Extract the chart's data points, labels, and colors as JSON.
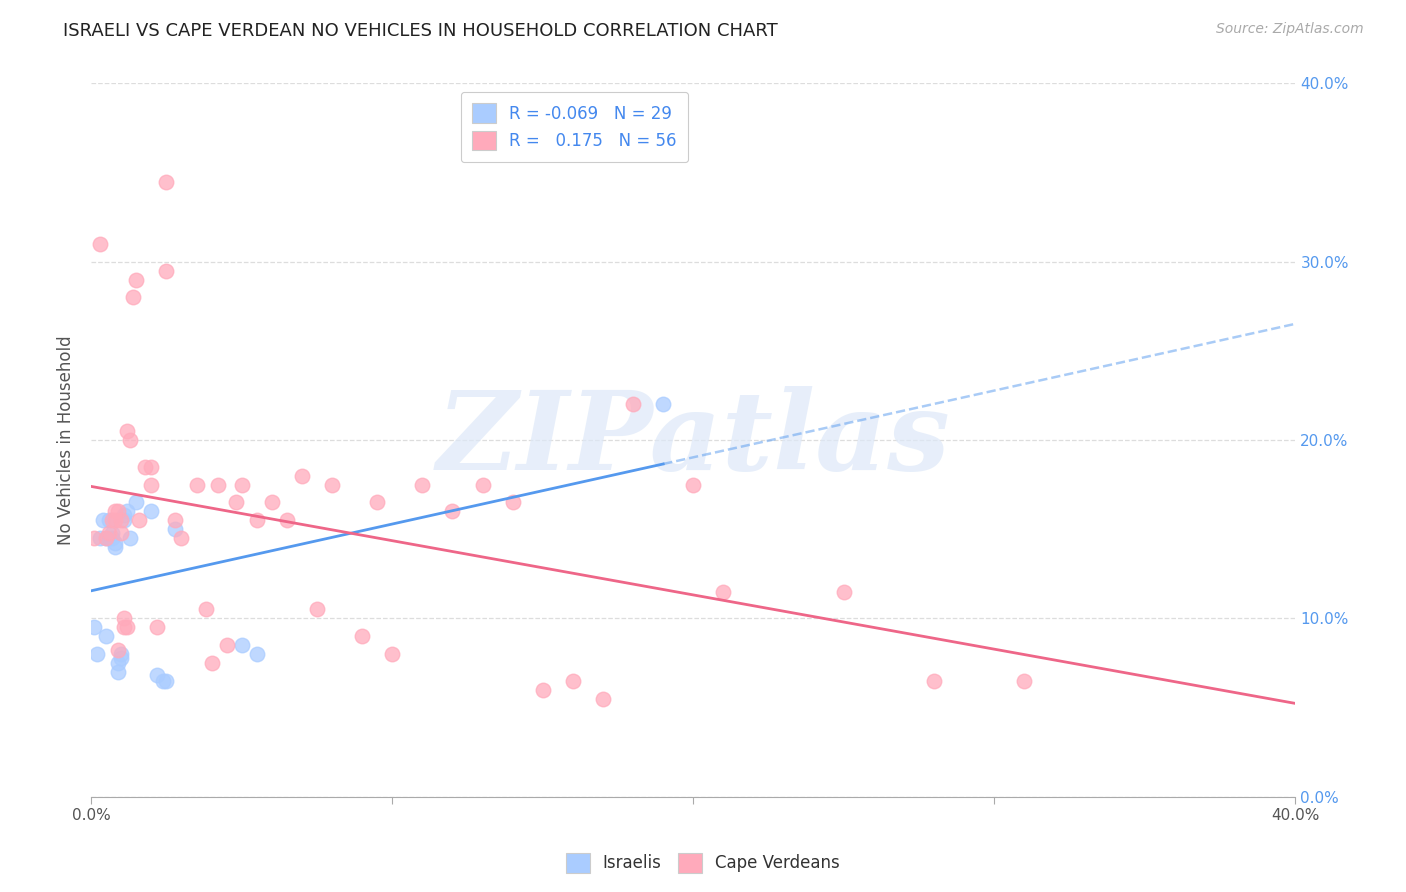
{
  "title": "ISRAELI VS CAPE VERDEAN NO VEHICLES IN HOUSEHOLD CORRELATION CHART",
  "source": "Source: ZipAtlas.com",
  "ylabel": "No Vehicles in Household",
  "watermark": "ZIPatlas",
  "legend_israeli_r": "-0.069",
  "legend_israeli_n": "29",
  "legend_capeverdean_r": "0.175",
  "legend_capeverdean_n": "56",
  "israeli_color": "#aaccff",
  "capeverdean_color": "#ffaabb",
  "israeli_line_color": "#5599ee",
  "capeverdean_line_color": "#ee6688",
  "xlim": [
    0.0,
    0.4
  ],
  "ylim": [
    0.0,
    0.4
  ],
  "israeli_scatter_x": [
    0.001,
    0.002,
    0.003,
    0.004,
    0.005,
    0.005,
    0.006,
    0.006,
    0.007,
    0.007,
    0.008,
    0.008,
    0.009,
    0.009,
    0.01,
    0.01,
    0.011,
    0.011,
    0.012,
    0.013,
    0.015,
    0.02,
    0.022,
    0.024,
    0.025,
    0.028,
    0.05,
    0.055,
    0.19
  ],
  "israeli_scatter_y": [
    0.095,
    0.08,
    0.145,
    0.155,
    0.09,
    0.145,
    0.145,
    0.155,
    0.145,
    0.148,
    0.14,
    0.142,
    0.075,
    0.07,
    0.078,
    0.08,
    0.155,
    0.158,
    0.16,
    0.145,
    0.165,
    0.16,
    0.068,
    0.065,
    0.065,
    0.15,
    0.085,
    0.08,
    0.22
  ],
  "capeverdean_scatter_x": [
    0.001,
    0.003,
    0.005,
    0.006,
    0.007,
    0.008,
    0.008,
    0.009,
    0.009,
    0.01,
    0.01,
    0.011,
    0.011,
    0.012,
    0.012,
    0.013,
    0.014,
    0.015,
    0.016,
    0.018,
    0.02,
    0.02,
    0.022,
    0.025,
    0.025,
    0.028,
    0.03,
    0.035,
    0.038,
    0.04,
    0.042,
    0.045,
    0.048,
    0.05,
    0.055,
    0.06,
    0.065,
    0.07,
    0.075,
    0.08,
    0.09,
    0.095,
    0.1,
    0.11,
    0.12,
    0.13,
    0.14,
    0.15,
    0.16,
    0.17,
    0.18,
    0.2,
    0.21,
    0.25,
    0.28,
    0.31
  ],
  "capeverdean_scatter_y": [
    0.145,
    0.31,
    0.145,
    0.148,
    0.155,
    0.16,
    0.155,
    0.082,
    0.16,
    0.155,
    0.148,
    0.095,
    0.1,
    0.095,
    0.205,
    0.2,
    0.28,
    0.29,
    0.155,
    0.185,
    0.175,
    0.185,
    0.095,
    0.345,
    0.295,
    0.155,
    0.145,
    0.175,
    0.105,
    0.075,
    0.175,
    0.085,
    0.165,
    0.175,
    0.155,
    0.165,
    0.155,
    0.18,
    0.105,
    0.175,
    0.09,
    0.165,
    0.08,
    0.175,
    0.16,
    0.175,
    0.165,
    0.06,
    0.065,
    0.055,
    0.22,
    0.175,
    0.115,
    0.115,
    0.065,
    0.065
  ],
  "background_color": "#ffffff",
  "grid_color": "#dddddd",
  "right_ytick_color": "#5599ee",
  "ytick_vals": [
    0.0,
    0.1,
    0.2,
    0.3,
    0.4
  ],
  "xtick_vals": [
    0.0,
    0.1,
    0.2,
    0.3,
    0.4
  ]
}
